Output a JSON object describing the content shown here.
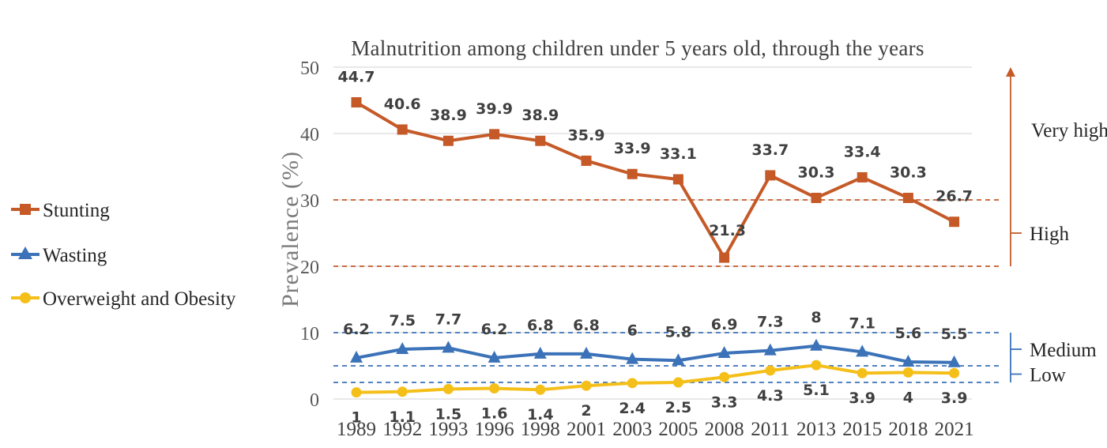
{
  "chart_data": {
    "type": "line",
    "title": "Malnutrition among children under 5 years old, through the years",
    "ylabel": "Prevalence  (%)",
    "xlabel": "",
    "ylim": [
      0,
      50
    ],
    "yticks": [
      "0",
      "10",
      "20",
      "30",
      "40",
      "50"
    ],
    "categories": [
      "1989",
      "1992",
      "1993",
      "1996",
      "1998",
      "2001",
      "2003",
      "2005",
      "2008",
      "2011",
      "2013",
      "2015",
      "2018",
      "2021"
    ],
    "series": [
      {
        "name": "Stunting",
        "color": "#C55A28",
        "marker": "square",
        "values": [
          44.7,
          40.6,
          38.9,
          39.9,
          38.9,
          35.9,
          33.9,
          33.1,
          21.3,
          33.7,
          30.3,
          33.4,
          30.3,
          26.7
        ],
        "labels": [
          "44.7",
          "40.6",
          "38.9",
          "39.9",
          "38.9",
          "35.9",
          "33.9",
          "33.1",
          "21.3",
          "33.7",
          "30.3",
          "33.4",
          "30.3",
          "26.7"
        ]
      },
      {
        "name": "Wasting",
        "color": "#3B72B8",
        "marker": "triangle",
        "values": [
          6.2,
          7.5,
          7.7,
          6.2,
          6.8,
          6.8,
          6,
          5.8,
          6.9,
          7.3,
          8,
          7.1,
          5.6,
          5.5
        ],
        "labels": [
          "6.2",
          "7.5",
          "7.7",
          "6.2",
          "6.8",
          "6.8",
          "6",
          "5.8",
          "6.9",
          "7.3",
          "8",
          "7.1",
          "5.6",
          "5.5"
        ]
      },
      {
        "name": "Overweight and Obesity",
        "color": "#F5BF1A",
        "marker": "circle",
        "values": [
          1,
          1.1,
          1.5,
          1.6,
          1.4,
          2,
          2.4,
          2.5,
          3.3,
          4.3,
          5.1,
          3.9,
          4,
          3.9
        ],
        "labels": [
          "1",
          "1.1",
          "1.5",
          "1.6",
          "1.4",
          "2",
          "2.4",
          "2.5",
          "3.3",
          "4.3",
          "5.1",
          "3.9",
          "4",
          "3.9"
        ]
      }
    ],
    "thresholds": [
      {
        "value": 30,
        "color": "#C55A28"
      },
      {
        "value": 20,
        "color": "#C55A28"
      },
      {
        "value": 10,
        "color": "#3B72B8"
      },
      {
        "value": 5,
        "color": "#3B72B8"
      },
      {
        "value": 2.5,
        "color": "#3B72B8"
      }
    ],
    "bands": [
      {
        "label": "Very high",
        "from": 30,
        "to": 50,
        "color": "#C55A28",
        "style": "arrow"
      },
      {
        "label": "High",
        "from": 20,
        "to": 30,
        "color": "#C55A28",
        "style": "bracket"
      },
      {
        "label": "Medium",
        "from": 5,
        "to": 10,
        "color": "#3B72B8",
        "style": "bracket"
      },
      {
        "label": "Low",
        "from": 2.5,
        "to": 5,
        "color": "#3B72B8",
        "style": "bracket"
      }
    ],
    "grid": "horizontal",
    "legend_position": "left"
  }
}
